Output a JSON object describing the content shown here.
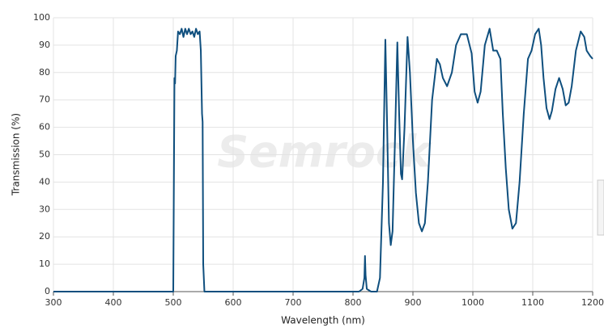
{
  "chart_data": {
    "type": "line",
    "watermark": "Semrock",
    "x_label": "Wavelength (nm)",
    "y_label": "Transmission (%)",
    "color": "#0f4f7e",
    "grid": true,
    "xlim": [
      300,
      1200
    ],
    "ylim": [
      0,
      100
    ],
    "xticks": [
      300,
      400,
      500,
      600,
      700,
      800,
      900,
      1000,
      1100,
      1200
    ],
    "yticks": [
      0,
      10,
      20,
      30,
      40,
      50,
      60,
      70,
      80,
      90,
      100
    ],
    "x": [
      300,
      495,
      500,
      502,
      503,
      504,
      506,
      508,
      511,
      514,
      517,
      520,
      523,
      526,
      529,
      532,
      535,
      538,
      541,
      544,
      546,
      548,
      549,
      550,
      552,
      810,
      816,
      819,
      820,
      821,
      823,
      830,
      840,
      845,
      850,
      854,
      857,
      860,
      863,
      866,
      870,
      874,
      877,
      880,
      882,
      886,
      891,
      895,
      900,
      905,
      910,
      915,
      920,
      925,
      932,
      940,
      945,
      950,
      957,
      965,
      972,
      980,
      990,
      998,
      1003,
      1008,
      1013,
      1020,
      1028,
      1034,
      1040,
      1046,
      1050,
      1055,
      1060,
      1066,
      1072,
      1078,
      1085,
      1092,
      1098,
      1104,
      1110,
      1114,
      1118,
      1123,
      1128,
      1132,
      1138,
      1144,
      1150,
      1155,
      1160,
      1165,
      1172,
      1180,
      1186,
      1190,
      1196,
      1200
    ],
    "values": [
      0,
      0,
      0,
      78,
      76,
      86,
      88,
      95,
      94,
      96,
      93,
      96,
      94,
      96,
      94,
      95,
      93,
      96,
      94,
      95,
      88,
      65,
      62,
      10,
      0,
      0,
      1,
      5,
      13,
      6,
      1,
      0,
      0,
      5,
      40,
      92,
      60,
      25,
      17,
      22,
      55,
      91,
      65,
      43,
      41,
      60,
      93,
      80,
      55,
      36,
      25,
      22,
      25,
      40,
      70,
      85,
      83,
      78,
      75,
      80,
      90,
      94,
      94,
      87,
      73,
      69,
      73,
      90,
      96,
      88,
      88,
      85,
      65,
      45,
      30,
      23,
      25,
      40,
      65,
      85,
      88,
      94,
      96,
      90,
      78,
      67,
      63,
      66,
      74,
      78,
      74,
      68,
      69,
      75,
      88,
      95,
      93,
      88,
      86,
      85
    ]
  }
}
